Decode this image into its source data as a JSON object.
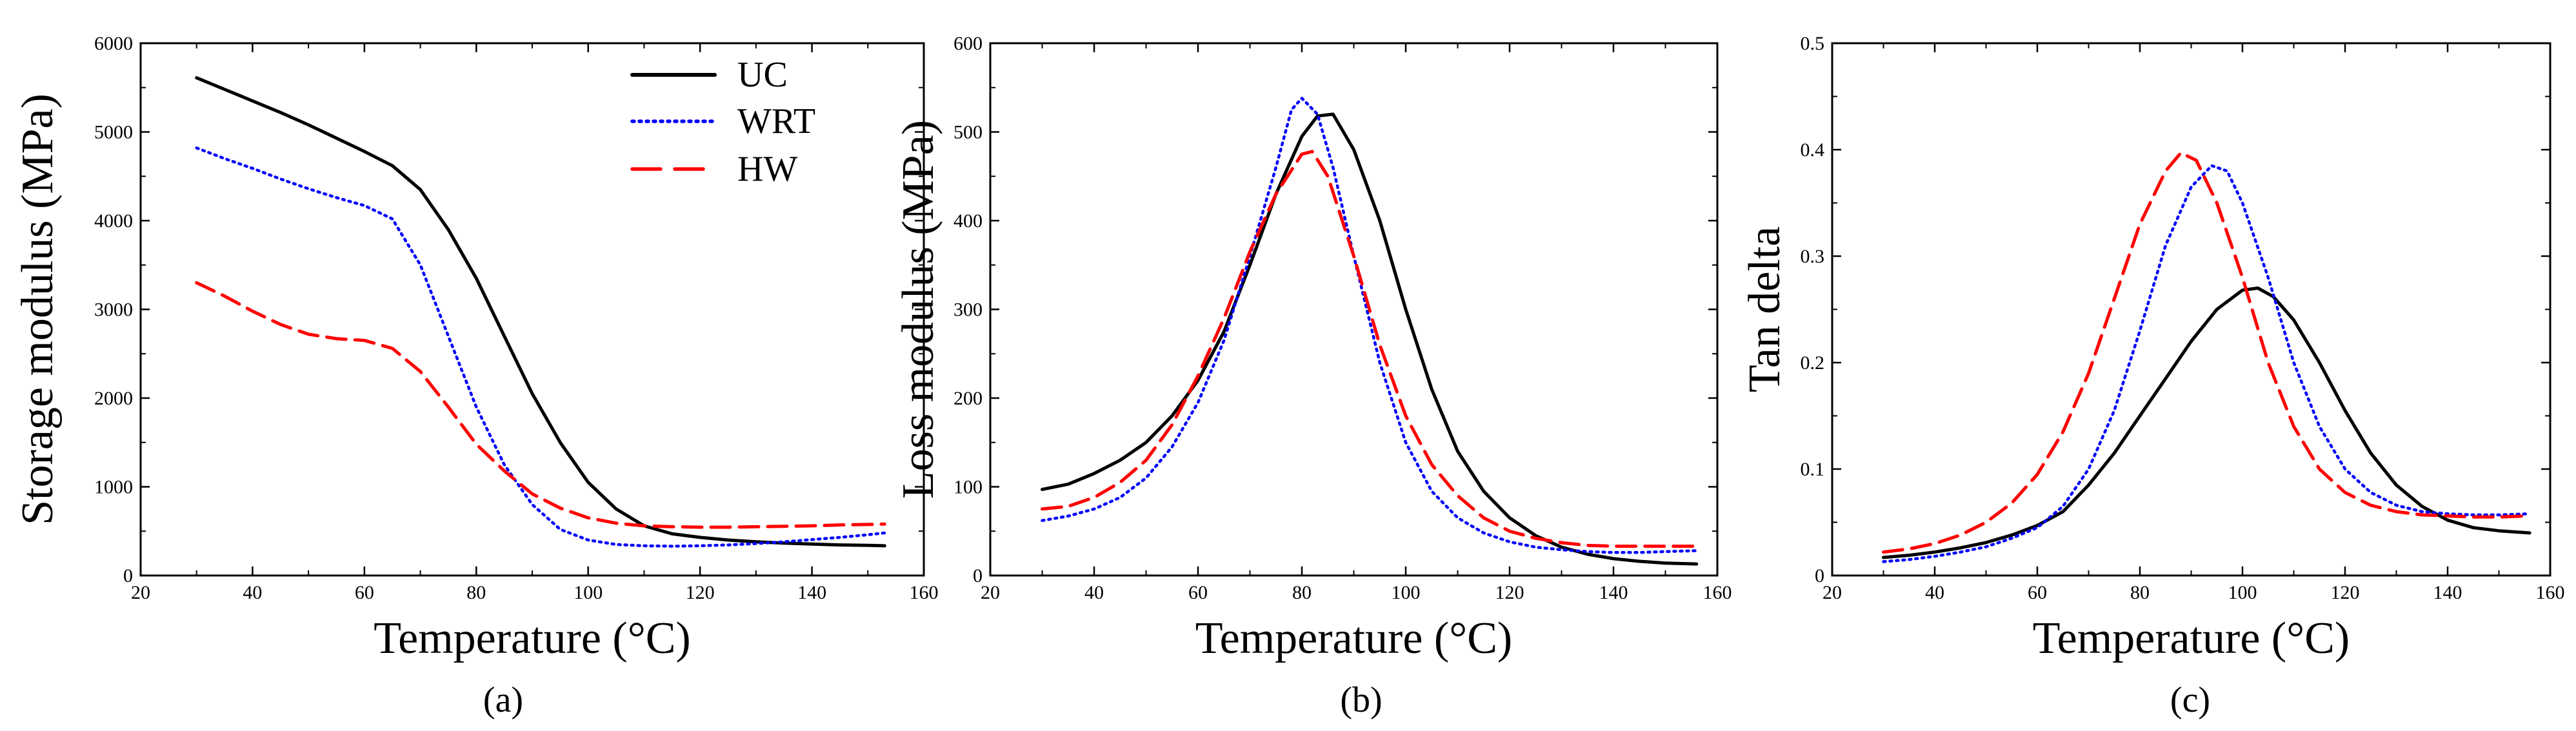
{
  "chart_data": [
    {
      "type": "line",
      "panel": "(a)",
      "xlabel": "Temperature (°C)",
      "ylabel": "Storage modulus (MPa)",
      "xlim": [
        20,
        160
      ],
      "ylim": [
        0,
        6000
      ],
      "xticks": [
        20,
        40,
        60,
        80,
        100,
        120,
        140,
        160
      ],
      "yticks": [
        0,
        1000,
        2000,
        3000,
        4000,
        5000,
        6000
      ],
      "legend": {
        "position": "top-right",
        "entries": [
          "UC",
          "WRT",
          "HW"
        ]
      },
      "series": [
        {
          "name": "UC",
          "color": "#000000",
          "style": "solid",
          "points": [
            [
              30,
              5610
            ],
            [
              35,
              5480
            ],
            [
              40,
              5350
            ],
            [
              45,
              5220
            ],
            [
              50,
              5080
            ],
            [
              55,
              4930
            ],
            [
              60,
              4780
            ],
            [
              65,
              4620
            ],
            [
              70,
              4350
            ],
            [
              75,
              3900
            ],
            [
              80,
              3350
            ],
            [
              85,
              2700
            ],
            [
              90,
              2050
            ],
            [
              95,
              1500
            ],
            [
              100,
              1050
            ],
            [
              105,
              750
            ],
            [
              110,
              560
            ],
            [
              115,
              470
            ],
            [
              120,
              430
            ],
            [
              125,
              400
            ],
            [
              130,
              380
            ],
            [
              135,
              365
            ],
            [
              140,
              355
            ],
            [
              145,
              345
            ],
            [
              150,
              340
            ],
            [
              153,
              335
            ]
          ]
        },
        {
          "name": "WRT",
          "color": "#0000ff",
          "style": "dotted",
          "points": [
            [
              30,
              4820
            ],
            [
              35,
              4700
            ],
            [
              40,
              4590
            ],
            [
              45,
              4470
            ],
            [
              50,
              4360
            ],
            [
              55,
              4260
            ],
            [
              60,
              4170
            ],
            [
              65,
              4020
            ],
            [
              70,
              3500
            ],
            [
              75,
              2700
            ],
            [
              80,
              1900
            ],
            [
              85,
              1250
            ],
            [
              90,
              800
            ],
            [
              95,
              520
            ],
            [
              100,
              400
            ],
            [
              105,
              350
            ],
            [
              110,
              335
            ],
            [
              115,
              330
            ],
            [
              120,
              335
            ],
            [
              125,
              345
            ],
            [
              130,
              360
            ],
            [
              135,
              380
            ],
            [
              140,
              405
            ],
            [
              145,
              430
            ],
            [
              150,
              460
            ],
            [
              153,
              480
            ]
          ]
        },
        {
          "name": "HW",
          "color": "#ff0000",
          "style": "dashed",
          "points": [
            [
              30,
              3300
            ],
            [
              35,
              3150
            ],
            [
              40,
              2980
            ],
            [
              45,
              2830
            ],
            [
              50,
              2720
            ],
            [
              55,
              2670
            ],
            [
              60,
              2650
            ],
            [
              65,
              2560
            ],
            [
              70,
              2300
            ],
            [
              75,
              1900
            ],
            [
              80,
              1480
            ],
            [
              85,
              1180
            ],
            [
              90,
              920
            ],
            [
              95,
              760
            ],
            [
              100,
              650
            ],
            [
              105,
              590
            ],
            [
              110,
              560
            ],
            [
              115,
              550
            ],
            [
              120,
              545
            ],
            [
              125,
              545
            ],
            [
              130,
              550
            ],
            [
              135,
              555
            ],
            [
              140,
              560
            ],
            [
              145,
              570
            ],
            [
              150,
              575
            ],
            [
              153,
              580
            ]
          ]
        }
      ]
    },
    {
      "type": "line",
      "panel": "(b)",
      "xlabel": "Temperature (°C)",
      "ylabel": "Loss modulus (MPa)",
      "xlim": [
        20,
        160
      ],
      "ylim": [
        0,
        600
      ],
      "xticks": [
        20,
        40,
        60,
        80,
        100,
        120,
        140,
        160
      ],
      "yticks": [
        0,
        100,
        200,
        300,
        400,
        500,
        600
      ],
      "series": [
        {
          "name": "UC",
          "color": "#000000",
          "style": "solid",
          "points": [
            [
              30,
              97
            ],
            [
              35,
              103
            ],
            [
              40,
              115
            ],
            [
              45,
              130
            ],
            [
              50,
              150
            ],
            [
              55,
              180
            ],
            [
              60,
              220
            ],
            [
              65,
              275
            ],
            [
              70,
              350
            ],
            [
              75,
              430
            ],
            [
              80,
              495
            ],
            [
              83,
              518
            ],
            [
              86,
              520
            ],
            [
              90,
              480
            ],
            [
              95,
              400
            ],
            [
              100,
              300
            ],
            [
              105,
              210
            ],
            [
              110,
              140
            ],
            [
              115,
              95
            ],
            [
              120,
              65
            ],
            [
              125,
              45
            ],
            [
              130,
              32
            ],
            [
              135,
              24
            ],
            [
              140,
              19
            ],
            [
              145,
              16
            ],
            [
              150,
              14
            ],
            [
              156,
              13
            ]
          ]
        },
        {
          "name": "WRT",
          "color": "#0000ff",
          "style": "dotted",
          "points": [
            [
              30,
              62
            ],
            [
              35,
              67
            ],
            [
              40,
              75
            ],
            [
              45,
              88
            ],
            [
              50,
              110
            ],
            [
              55,
              145
            ],
            [
              60,
              195
            ],
            [
              65,
              265
            ],
            [
              70,
              360
            ],
            [
              75,
              460
            ],
            [
              78,
              525
            ],
            [
              80,
              538
            ],
            [
              83,
              520
            ],
            [
              86,
              460
            ],
            [
              90,
              360
            ],
            [
              95,
              240
            ],
            [
              100,
              150
            ],
            [
              105,
              95
            ],
            [
              110,
              65
            ],
            [
              115,
              48
            ],
            [
              120,
              38
            ],
            [
              125,
              32
            ],
            [
              130,
              29
            ],
            [
              135,
              27
            ],
            [
              140,
              26
            ],
            [
              145,
              26
            ],
            [
              150,
              27
            ],
            [
              156,
              28
            ]
          ]
        },
        {
          "name": "HW",
          "color": "#ff0000",
          "style": "dashed",
          "points": [
            [
              30,
              75
            ],
            [
              35,
              78
            ],
            [
              40,
              88
            ],
            [
              45,
              105
            ],
            [
              50,
              130
            ],
            [
              55,
              170
            ],
            [
              60,
              225
            ],
            [
              65,
              290
            ],
            [
              70,
              365
            ],
            [
              75,
              430
            ],
            [
              80,
              475
            ],
            [
              82,
              478
            ],
            [
              85,
              450
            ],
            [
              90,
              360
            ],
            [
              95,
              260
            ],
            [
              100,
              180
            ],
            [
              105,
              125
            ],
            [
              110,
              90
            ],
            [
              115,
              65
            ],
            [
              120,
              50
            ],
            [
              125,
              42
            ],
            [
              130,
              37
            ],
            [
              135,
              34
            ],
            [
              140,
              33
            ],
            [
              145,
              33
            ],
            [
              150,
              33
            ],
            [
              156,
              33
            ]
          ]
        }
      ]
    },
    {
      "type": "line",
      "panel": "(c)",
      "xlabel": "Temperature (°C)",
      "ylabel": "Tan delta",
      "xlim": [
        20,
        160
      ],
      "ylim": [
        0,
        0.5
      ],
      "xticks": [
        20,
        40,
        60,
        80,
        100,
        120,
        140,
        160
      ],
      "yticks": [
        0,
        0.1,
        0.2,
        0.3,
        0.4,
        0.5
      ],
      "series": [
        {
          "name": "UC",
          "color": "#000000",
          "style": "solid",
          "points": [
            [
              30,
              0.017
            ],
            [
              35,
              0.019
            ],
            [
              40,
              0.022
            ],
            [
              45,
              0.026
            ],
            [
              50,
              0.031
            ],
            [
              55,
              0.038
            ],
            [
              60,
              0.047
            ],
            [
              65,
              0.06
            ],
            [
              70,
              0.085
            ],
            [
              75,
              0.115
            ],
            [
              80,
              0.15
            ],
            [
              85,
              0.185
            ],
            [
              90,
              0.22
            ],
            [
              95,
              0.25
            ],
            [
              100,
              0.268
            ],
            [
              103,
              0.27
            ],
            [
              106,
              0.262
            ],
            [
              110,
              0.24
            ],
            [
              115,
              0.2
            ],
            [
              120,
              0.155
            ],
            [
              125,
              0.115
            ],
            [
              130,
              0.085
            ],
            [
              135,
              0.065
            ],
            [
              140,
              0.052
            ],
            [
              145,
              0.045
            ],
            [
              150,
              0.042
            ],
            [
              156,
              0.04
            ]
          ]
        },
        {
          "name": "WRT",
          "color": "#0000ff",
          "style": "dotted",
          "points": [
            [
              30,
              0.013
            ],
            [
              35,
              0.015
            ],
            [
              40,
              0.018
            ],
            [
              45,
              0.022
            ],
            [
              50,
              0.027
            ],
            [
              55,
              0.035
            ],
            [
              60,
              0.045
            ],
            [
              65,
              0.065
            ],
            [
              70,
              0.1
            ],
            [
              75,
              0.155
            ],
            [
              80,
              0.23
            ],
            [
              85,
              0.31
            ],
            [
              90,
              0.365
            ],
            [
              94,
              0.385
            ],
            [
              97,
              0.38
            ],
            [
              100,
              0.35
            ],
            [
              105,
              0.28
            ],
            [
              110,
              0.2
            ],
            [
              115,
              0.14
            ],
            [
              120,
              0.1
            ],
            [
              125,
              0.078
            ],
            [
              130,
              0.066
            ],
            [
              135,
              0.06
            ],
            [
              140,
              0.058
            ],
            [
              145,
              0.057
            ],
            [
              150,
              0.057
            ],
            [
              156,
              0.058
            ]
          ]
        },
        {
          "name": "HW",
          "color": "#ff0000",
          "style": "dashed",
          "points": [
            [
              30,
              0.022
            ],
            [
              35,
              0.025
            ],
            [
              40,
              0.03
            ],
            [
              45,
              0.038
            ],
            [
              50,
              0.05
            ],
            [
              55,
              0.068
            ],
            [
              60,
              0.095
            ],
            [
              65,
              0.135
            ],
            [
              70,
              0.19
            ],
            [
              75,
              0.26
            ],
            [
              80,
              0.33
            ],
            [
              85,
              0.38
            ],
            [
              88,
              0.397
            ],
            [
              91,
              0.39
            ],
            [
              95,
              0.35
            ],
            [
              100,
              0.28
            ],
            [
              105,
              0.2
            ],
            [
              110,
              0.14
            ],
            [
              115,
              0.1
            ],
            [
              120,
              0.078
            ],
            [
              125,
              0.066
            ],
            [
              130,
              0.06
            ],
            [
              135,
              0.057
            ],
            [
              140,
              0.056
            ],
            [
              145,
              0.055
            ],
            [
              150,
              0.055
            ],
            [
              156,
              0.056
            ]
          ]
        }
      ]
    }
  ]
}
